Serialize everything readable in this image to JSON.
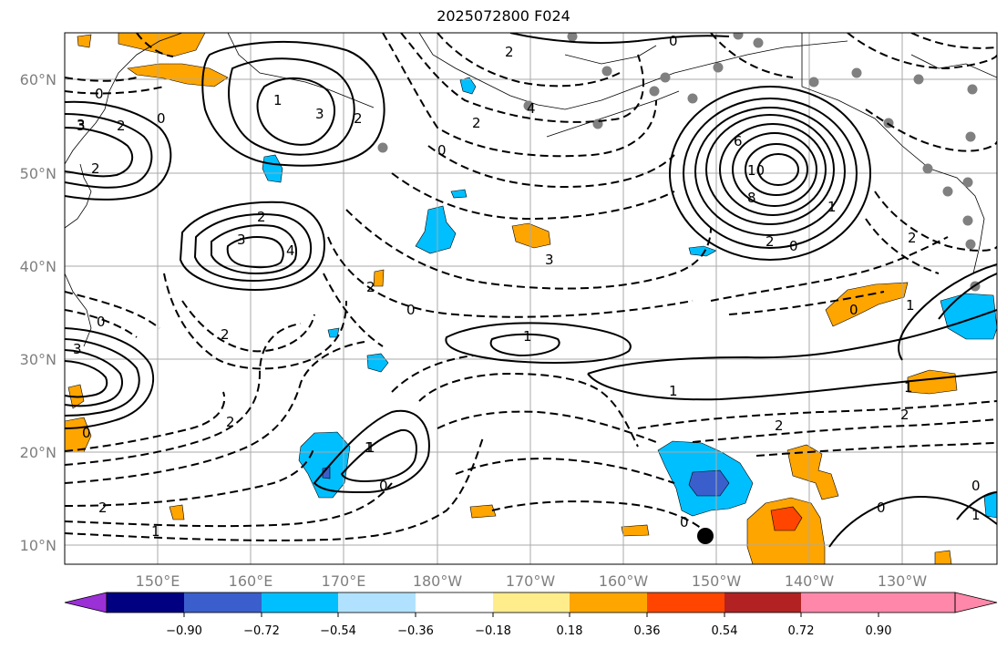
{
  "title": "2025072800 F024",
  "map": {
    "lat_ticks": [
      "60°N",
      "50°N",
      "40°N",
      "30°N",
      "20°N",
      "10°N"
    ],
    "lon_ticks": [
      "150°E",
      "160°E",
      "170°E",
      "180°W",
      "170°W",
      "160°W",
      "150°W",
      "140°W",
      "130°W"
    ],
    "lat_range": [
      8,
      65
    ],
    "lon_range_east": [
      140,
      240
    ],
    "grid": true
  },
  "colorbar": {
    "colors": [
      "#9b30d6",
      "#000080",
      "#3a5fcd",
      "#00bfff",
      "#b0e2ff",
      "#ffffff",
      "#ffec8b",
      "#ffa500",
      "#ff4500",
      "#b22222",
      "#ff88aa"
    ],
    "labels": [
      "−0.90",
      "−0.72",
      "−0.54",
      "−0.36",
      "−0.18",
      "0.18",
      "0.36",
      "0.54",
      "0.72",
      "0.90"
    ],
    "extend": "both"
  },
  "contour_labels": [
    "0",
    "2",
    "3",
    "2",
    "3",
    "0",
    "1",
    "2",
    "3",
    "4",
    "2",
    "3",
    "0",
    "2",
    "2",
    "0",
    "2",
    "6",
    "10",
    "8",
    "2",
    "0",
    "1",
    "2",
    "1",
    "0",
    "1",
    "1",
    "2",
    "2",
    "0",
    "1",
    "0",
    "1",
    "2",
    "1",
    "0",
    "0",
    "0",
    "3",
    "2",
    "0",
    "3",
    "1",
    "4",
    "0",
    "2",
    "1"
  ]
}
